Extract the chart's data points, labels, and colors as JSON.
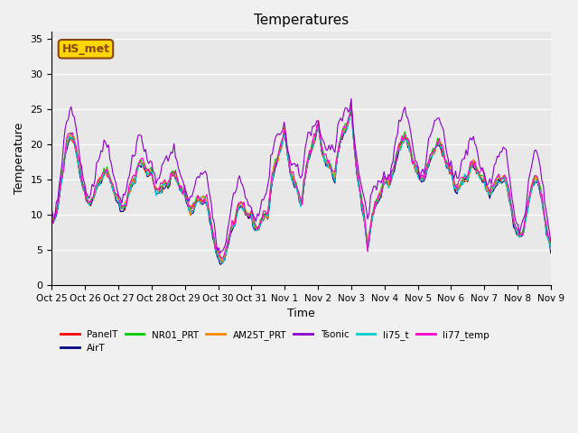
{
  "title": "Temperatures",
  "xlabel": "Time",
  "ylabel": "Temperature",
  "ylim": [
    0,
    36
  ],
  "yticks": [
    0,
    5,
    10,
    15,
    20,
    25,
    30,
    35
  ],
  "x_labels": [
    "Oct 25",
    "Oct 26",
    "Oct 27",
    "Oct 28",
    "Oct 29",
    "Oct 30",
    "Oct 31",
    "Nov 1",
    "Nov 2",
    "Nov 3",
    "Nov 4",
    "Nov 5",
    "Nov 6",
    "Nov 7",
    "Nov 8",
    "Nov 9"
  ],
  "annotation_text": "HS_met",
  "series_colors": {
    "PanelT": "#ff0000",
    "AirT": "#000080",
    "NR01_PRT": "#00cc00",
    "AM25T_PRT": "#ff8800",
    "Tsonic": "#8800cc",
    "li75_t": "#00cccc",
    "li77_temp": "#ff00cc"
  },
  "background_color": "#e8e8e8",
  "grid_color": "#ffffff",
  "num_points": 336
}
